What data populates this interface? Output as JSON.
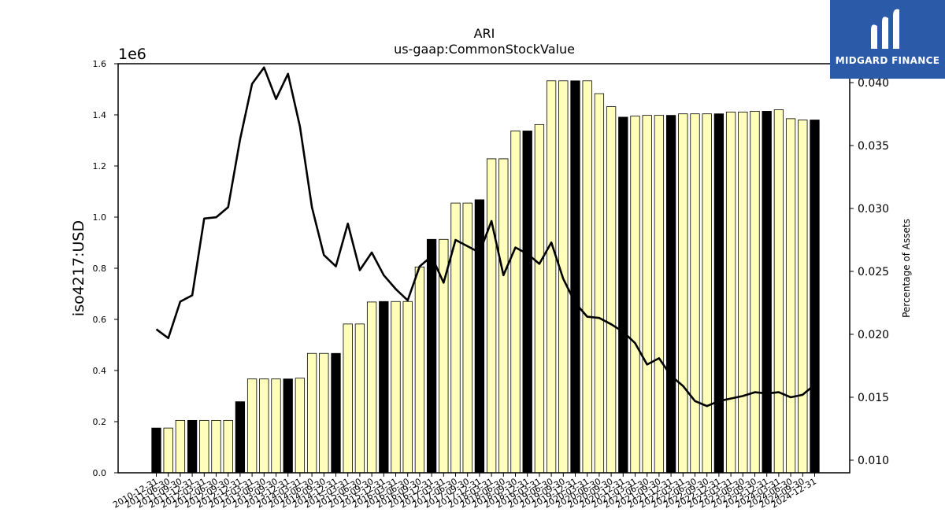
{
  "chart_data": {
    "type": "bar",
    "title": "ARI",
    "subtitle": "us-gaap:CommonStockValue",
    "ylabel": "iso4217:USD",
    "y_offset_label": "1e6",
    "y2label": "Percentage of Assets",
    "ylim": [
      0,
      1.6
    ],
    "y_ticks": [
      "0.0",
      "0.2",
      "0.4",
      "0.6",
      "0.8",
      "1.0",
      "1.2",
      "1.4",
      "1.6"
    ],
    "y2lim": [
      0.009,
      0.0415
    ],
    "y2_ticks": [
      "0.010",
      "0.015",
      "0.020",
      "0.025",
      "0.030",
      "0.035",
      "0.040"
    ],
    "grid": false,
    "colors": {
      "annual": "#000000",
      "quarterly": "#ffffbb",
      "line": "#000000"
    },
    "categories": [
      "2010-12-31",
      "2011-06-30",
      "2011-09-30",
      "2011-12-31",
      "2012-03-31",
      "2012-06-30",
      "2012-09-30",
      "2012-12-31",
      "2013-03-31",
      "2013-06-30",
      "2013-09-30",
      "2013-12-31",
      "2014-03-31",
      "2014-06-30",
      "2014-09-30",
      "2014-12-31",
      "2015-03-31",
      "2015-06-30",
      "2015-09-30",
      "2015-12-31",
      "2016-03-31",
      "2016-06-30",
      "2016-09-30",
      "2016-12-31",
      "2017-03-31",
      "2017-06-30",
      "2017-09-30",
      "2017-12-31",
      "2018-03-31",
      "2018-06-30",
      "2018-09-30",
      "2018-12-31",
      "2019-03-31",
      "2019-06-30",
      "2019-09-30",
      "2019-12-31",
      "2020-03-31",
      "2020-06-30",
      "2020-09-30",
      "2020-12-31",
      "2021-03-31",
      "2021-06-30",
      "2021-09-30",
      "2021-12-31",
      "2022-03-31",
      "2022-06-30",
      "2022-09-30",
      "2022-12-31",
      "2023-03-31",
      "2023-06-30",
      "2023-09-30",
      "2023-12-31",
      "2024-03-31",
      "2024-06-30",
      "2024-09-30",
      "2024-12-31"
    ],
    "annual": [
      true,
      false,
      false,
      true,
      false,
      false,
      false,
      true,
      false,
      false,
      false,
      true,
      false,
      false,
      false,
      true,
      false,
      false,
      false,
      true,
      false,
      false,
      false,
      true,
      false,
      false,
      false,
      true,
      false,
      false,
      false,
      true,
      false,
      false,
      false,
      true,
      false,
      false,
      false,
      true,
      false,
      false,
      false,
      true,
      false,
      false,
      false,
      true,
      false,
      false,
      false,
      true,
      false,
      false,
      false,
      true
    ],
    "series": [
      {
        "name": "iso4217:USD",
        "type": "bar",
        "values": [
          0.175,
          0.175,
          0.205,
          0.205,
          0.205,
          0.205,
          0.205,
          0.278,
          0.367,
          0.367,
          0.367,
          0.367,
          0.37,
          0.467,
          0.467,
          0.467,
          0.582,
          0.582,
          0.668,
          0.67,
          0.67,
          0.67,
          0.805,
          0.913,
          0.913,
          1.055,
          1.055,
          1.068,
          1.228,
          1.228,
          1.337,
          1.337,
          1.362,
          1.533,
          1.533,
          1.533,
          1.533,
          1.483,
          1.432,
          1.391,
          1.395,
          1.398,
          1.398,
          1.398,
          1.404,
          1.404,
          1.404,
          1.404,
          1.411,
          1.411,
          1.414,
          1.414,
          1.42,
          1.385,
          1.38,
          1.38
        ]
      },
      {
        "name": "Percentage of Assets",
        "type": "line",
        "values": [
          0.0204,
          0.0197,
          0.0226,
          0.0231,
          0.0292,
          0.0293,
          0.0301,
          0.0355,
          0.0399,
          0.0412,
          0.0387,
          0.0407,
          0.0365,
          0.0301,
          0.0263,
          0.0254,
          0.0288,
          0.0251,
          0.0265,
          0.0247,
          0.0236,
          0.0227,
          0.0254,
          0.0262,
          0.0241,
          0.0275,
          0.027,
          0.0265,
          0.029,
          0.0247,
          0.0269,
          0.0264,
          0.0256,
          0.0273,
          0.0244,
          0.0225,
          0.0214,
          0.0213,
          0.0208,
          0.0202,
          0.0193,
          0.0176,
          0.0181,
          0.0167,
          0.0159,
          0.0147,
          0.0143,
          0.0147,
          0.0149,
          0.0151,
          0.0154,
          0.0153,
          0.0154,
          0.015,
          0.0152,
          0.016
        ]
      }
    ]
  },
  "logo": {
    "text": "MIDGARD FINANCE"
  }
}
